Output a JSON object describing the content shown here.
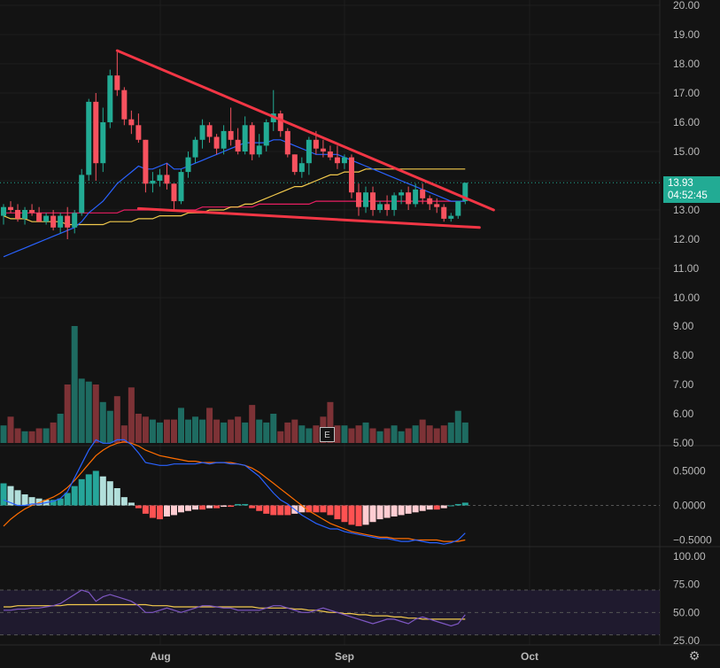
{
  "chart_data": {
    "type": "candlestick",
    "x_labels": [
      "Aug",
      "Sep",
      "Oct"
    ],
    "price": {
      "y_ticks": [
        "20.00",
        "19.00",
        "18.00",
        "17.00",
        "16.00",
        "15.00",
        "14.00",
        "13.00",
        "12.00",
        "11.00",
        "10.00"
      ],
      "ylim": [
        9.6,
        20.2
      ],
      "last_price": "13.93",
      "countdown": "04:52:45",
      "candles": [
        [
          12.8,
          13.2,
          12.5,
          13.1
        ],
        [
          13.1,
          13.3,
          12.9,
          13.0
        ],
        [
          13.0,
          13.2,
          12.6,
          12.7
        ],
        [
          12.7,
          13.1,
          12.5,
          13.0
        ],
        [
          13.0,
          13.2,
          12.8,
          12.9
        ],
        [
          12.9,
          13.1,
          12.6,
          12.6
        ],
        [
          12.6,
          12.9,
          12.5,
          12.8
        ],
        [
          12.8,
          13.0,
          12.3,
          12.4
        ],
        [
          12.4,
          12.9,
          12.2,
          12.8
        ],
        [
          12.8,
          13.1,
          12.0,
          12.4
        ],
        [
          12.4,
          13.0,
          12.2,
          12.9
        ],
        [
          12.9,
          14.4,
          12.8,
          14.2
        ],
        [
          14.2,
          16.8,
          14.0,
          16.7
        ],
        [
          16.7,
          17.0,
          14.0,
          14.6
        ],
        [
          14.6,
          16.5,
          14.3,
          16.0
        ],
        [
          16.0,
          17.8,
          15.8,
          17.6
        ],
        [
          17.6,
          18.4,
          16.9,
          17.1
        ],
        [
          17.1,
          17.2,
          15.9,
          16.1
        ],
        [
          16.1,
          16.4,
          15.6,
          15.9
        ],
        [
          15.9,
          16.3,
          15.3,
          15.4
        ],
        [
          15.4,
          15.4,
          13.6,
          13.9
        ],
        [
          13.9,
          14.3,
          13.6,
          14.0
        ],
        [
          14.0,
          14.4,
          13.8,
          14.2
        ],
        [
          14.2,
          14.6,
          13.7,
          13.9
        ],
        [
          13.9,
          13.9,
          13.0,
          13.3
        ],
        [
          13.3,
          14.4,
          13.2,
          14.3
        ],
        [
          14.3,
          15.0,
          14.1,
          14.8
        ],
        [
          14.8,
          15.5,
          14.6,
          15.4
        ],
        [
          15.4,
          16.1,
          15.1,
          15.9
        ],
        [
          15.9,
          16.0,
          15.3,
          15.5
        ],
        [
          15.5,
          15.6,
          14.9,
          15.1
        ],
        [
          15.1,
          15.9,
          14.9,
          15.7
        ],
        [
          15.7,
          16.5,
          15.2,
          15.4
        ],
        [
          15.4,
          15.8,
          14.9,
          15.0
        ],
        [
          15.0,
          16.2,
          14.9,
          15.9
        ],
        [
          15.9,
          16.0,
          14.7,
          14.9
        ],
        [
          14.9,
          15.6,
          14.8,
          15.2
        ],
        [
          15.2,
          16.1,
          15.0,
          16.0
        ],
        [
          16.0,
          17.1,
          15.7,
          16.3
        ],
        [
          16.3,
          16.4,
          15.5,
          15.7
        ],
        [
          15.7,
          15.8,
          14.8,
          14.9
        ],
        [
          14.9,
          14.9,
          14.2,
          14.3
        ],
        [
          14.3,
          14.8,
          14.1,
          14.6
        ],
        [
          14.6,
          15.5,
          14.2,
          15.4
        ],
        [
          15.4,
          15.7,
          14.9,
          15.1
        ],
        [
          15.1,
          15.4,
          14.8,
          15.0
        ],
        [
          15.0,
          15.2,
          14.7,
          14.8
        ],
        [
          14.8,
          15.2,
          14.4,
          14.6
        ],
        [
          14.6,
          14.9,
          14.4,
          14.8
        ],
        [
          14.8,
          14.9,
          13.4,
          13.6
        ],
        [
          13.6,
          13.9,
          12.8,
          13.1
        ],
        [
          13.1,
          13.8,
          12.9,
          13.6
        ],
        [
          13.6,
          13.8,
          12.8,
          13.0
        ],
        [
          13.0,
          13.3,
          12.9,
          13.2
        ],
        [
          13.2,
          13.5,
          12.8,
          13.0
        ],
        [
          13.0,
          13.6,
          12.8,
          13.5
        ],
        [
          13.5,
          13.7,
          13.2,
          13.6
        ],
        [
          13.6,
          13.8,
          13.0,
          13.2
        ],
        [
          13.2,
          13.9,
          13.1,
          13.7
        ],
        [
          13.7,
          13.9,
          13.2,
          13.4
        ],
        [
          13.4,
          13.5,
          13.0,
          13.2
        ],
        [
          13.2,
          13.4,
          12.9,
          13.1
        ],
        [
          13.1,
          13.2,
          12.6,
          12.7
        ],
        [
          12.7,
          12.9,
          12.6,
          12.8
        ],
        [
          12.8,
          13.3,
          12.7,
          13.3
        ],
        [
          13.3,
          13.93,
          13.2,
          13.93
        ]
      ],
      "ma_blue": [
        11.4,
        11.5,
        11.6,
        11.7,
        11.8,
        11.9,
        12.0,
        12.1,
        12.2,
        12.3,
        12.4,
        12.6,
        12.9,
        13.1,
        13.3,
        13.6,
        13.9,
        14.1,
        14.3,
        14.5,
        14.4,
        14.4,
        14.5,
        14.6,
        14.4,
        14.4,
        14.5,
        14.6,
        14.7,
        14.8,
        14.9,
        15.0,
        15.1,
        15.2,
        15.3,
        15.3,
        15.3,
        15.3,
        15.4,
        15.4,
        15.3,
        15.2,
        15.1,
        15.0,
        14.9,
        14.9,
        14.9,
        14.9,
        14.8,
        14.7,
        14.6,
        14.5,
        14.4,
        14.3,
        14.2,
        14.1,
        14.0,
        13.9,
        13.8,
        13.7,
        13.6,
        13.5,
        13.4,
        13.3,
        13.3,
        13.3
      ],
      "ma_yellow": [
        12.8,
        12.7,
        12.7,
        12.7,
        12.6,
        12.6,
        12.6,
        12.6,
        12.6,
        12.5,
        12.5,
        12.5,
        12.5,
        12.5,
        12.5,
        12.6,
        12.6,
        12.6,
        12.6,
        12.7,
        12.7,
        12.7,
        12.8,
        12.8,
        12.8,
        12.8,
        12.9,
        12.9,
        12.9,
        13.0,
        13.0,
        13.0,
        13.1,
        13.1,
        13.2,
        13.2,
        13.3,
        13.4,
        13.5,
        13.6,
        13.7,
        13.8,
        13.8,
        13.9,
        14.0,
        14.1,
        14.2,
        14.2,
        14.3,
        14.3,
        14.3,
        14.4,
        14.4,
        14.4,
        14.4,
        14.4,
        14.4,
        14.4,
        14.4,
        14.4,
        14.4,
        14.4,
        14.4,
        14.4,
        14.4,
        14.4
      ],
      "ma_pink": [
        12.9,
        12.9,
        12.9,
        12.9,
        12.9,
        12.9,
        12.9,
        12.9,
        12.9,
        12.9,
        12.9,
        12.9,
        12.9,
        12.9,
        12.9,
        12.9,
        12.9,
        13.0,
        13.0,
        13.0,
        13.0,
        13.0,
        13.0,
        13.0,
        13.0,
        13.0,
        13.0,
        13.0,
        13.1,
        13.1,
        13.1,
        13.1,
        13.1,
        13.1,
        13.1,
        13.1,
        13.2,
        13.2,
        13.2,
        13.2,
        13.2,
        13.2,
        13.2,
        13.2,
        13.3,
        13.3,
        13.3,
        13.3,
        13.3,
        13.3,
        13.3,
        13.3,
        13.3,
        13.3,
        13.3,
        13.3,
        13.3,
        13.3,
        13.3,
        13.3,
        13.3,
        13.3,
        13.3,
        13.3,
        13.3,
        13.3
      ],
      "trendlines": [
        {
          "from": [
            16,
            18.45
          ],
          "to": [
            69,
            13.0
          ]
        },
        {
          "from": [
            19,
            13.05
          ],
          "to": [
            67,
            12.4
          ]
        }
      ]
    },
    "volume": {
      "y_ticks": [
        "9.00",
        "8.00",
        "7.00",
        "6.00",
        "5.00"
      ],
      "ylim": [
        5.0,
        9.0
      ],
      "values": [
        5.6,
        5.9,
        5.5,
        5.4,
        5.4,
        5.5,
        5.5,
        5.7,
        6.0,
        7.0,
        9.0,
        7.2,
        7.1,
        7.0,
        6.4,
        6.1,
        6.6,
        5.6,
        6.9,
        6.0,
        5.9,
        5.8,
        5.7,
        5.8,
        5.8,
        6.2,
        5.8,
        5.9,
        5.8,
        6.2,
        5.8,
        5.7,
        5.8,
        5.9,
        5.7,
        6.3,
        5.8,
        5.7,
        6.0,
        5.4,
        5.7,
        5.8,
        5.6,
        5.5,
        5.6,
        5.9,
        6.4,
        5.6,
        5.6,
        5.5,
        5.6,
        5.7,
        5.5,
        5.4,
        5.5,
        5.6,
        5.4,
        5.5,
        5.6,
        5.8,
        5.6,
        5.5,
        5.6,
        5.7,
        6.1,
        5.7
      ],
      "earnings_marker": "E"
    },
    "macd": {
      "y_ticks": [
        "0.5000",
        "0.0000",
        "−0.5000"
      ],
      "ylim": [
        -0.62,
        0.95
      ],
      "histogram": [
        0.32,
        0.28,
        0.22,
        0.16,
        0.12,
        0.1,
        0.08,
        0.08,
        0.1,
        0.18,
        0.28,
        0.38,
        0.45,
        0.5,
        0.42,
        0.35,
        0.25,
        0.12,
        0.04,
        -0.04,
        -0.12,
        -0.18,
        -0.2,
        -0.16,
        -0.14,
        -0.1,
        -0.08,
        -0.06,
        -0.06,
        -0.04,
        -0.04,
        -0.02,
        -0.02,
        0.02,
        0.02,
        -0.04,
        -0.08,
        -0.12,
        -0.14,
        -0.14,
        -0.14,
        -0.12,
        -0.1,
        -0.1,
        -0.1,
        -0.1,
        -0.14,
        -0.2,
        -0.24,
        -0.28,
        -0.3,
        -0.28,
        -0.24,
        -0.2,
        -0.18,
        -0.16,
        -0.14,
        -0.12,
        -0.1,
        -0.08,
        -0.06,
        -0.06,
        -0.04,
        0.0,
        0.02,
        0.04
      ],
      "macd_line": [
        0.08,
        0.04,
        0.0,
        0.0,
        0.02,
        0.02,
        0.04,
        0.06,
        0.1,
        0.2,
        0.4,
        0.6,
        0.8,
        0.95,
        0.9,
        0.9,
        0.95,
        0.95,
        0.88,
        0.76,
        0.62,
        0.6,
        0.58,
        0.58,
        0.6,
        0.6,
        0.6,
        0.6,
        0.62,
        0.6,
        0.62,
        0.62,
        0.6,
        0.6,
        0.58,
        0.5,
        0.42,
        0.3,
        0.18,
        0.08,
        0.02,
        -0.06,
        -0.14,
        -0.2,
        -0.26,
        -0.3,
        -0.34,
        -0.34,
        -0.38,
        -0.4,
        -0.42,
        -0.44,
        -0.46,
        -0.48,
        -0.48,
        -0.5,
        -0.52,
        -0.52,
        -0.5,
        -0.52,
        -0.54,
        -0.54,
        -0.56,
        -0.54,
        -0.5,
        -0.4
      ],
      "signal_line": [
        -0.3,
        -0.2,
        -0.12,
        -0.05,
        0.0,
        0.04,
        0.08,
        0.12,
        0.18,
        0.26,
        0.36,
        0.48,
        0.6,
        0.72,
        0.8,
        0.86,
        0.9,
        0.92,
        0.9,
        0.86,
        0.8,
        0.76,
        0.72,
        0.7,
        0.68,
        0.66,
        0.64,
        0.64,
        0.62,
        0.62,
        0.62,
        0.62,
        0.62,
        0.6,
        0.58,
        0.54,
        0.48,
        0.4,
        0.32,
        0.24,
        0.16,
        0.08,
        0.0,
        -0.08,
        -0.14,
        -0.2,
        -0.26,
        -0.3,
        -0.34,
        -0.38,
        -0.4,
        -0.42,
        -0.44,
        -0.46,
        -0.46,
        -0.48,
        -0.48,
        -0.48,
        -0.5,
        -0.5,
        -0.5,
        -0.5,
        -0.52,
        -0.52,
        -0.52,
        -0.5
      ]
    },
    "rsi": {
      "y_ticks": [
        "100.00",
        "75.00",
        "50.00",
        "25.00"
      ],
      "ylim": [
        20,
        100
      ],
      "bands": [
        70,
        50,
        30
      ],
      "rsi_line": [
        52,
        52,
        53,
        53,
        54,
        54,
        55,
        56,
        58,
        62,
        66,
        70,
        68,
        60,
        64,
        66,
        64,
        62,
        60,
        56,
        50,
        50,
        52,
        54,
        52,
        50,
        52,
        54,
        56,
        56,
        55,
        54,
        54,
        52,
        52,
        52,
        52,
        54,
        56,
        56,
        54,
        52,
        50,
        50,
        52,
        54,
        52,
        50,
        48,
        46,
        44,
        42,
        40,
        42,
        44,
        44,
        42,
        40,
        44,
        46,
        44,
        42,
        40,
        38,
        40,
        48
      ],
      "rsi_ma": [
        55,
        55,
        56,
        56,
        56,
        56,
        56,
        56,
        56,
        57,
        57,
        57,
        57,
        57,
        57,
        57,
        57,
        57,
        57,
        57,
        57,
        56,
        56,
        56,
        55,
        55,
        55,
        55,
        55,
        55,
        55,
        55,
        55,
        55,
        55,
        55,
        54,
        54,
        54,
        54,
        54,
        53,
        53,
        52,
        52,
        51,
        50,
        50,
        49,
        49,
        48,
        48,
        47,
        47,
        47,
        46,
        46,
        45,
        45,
        44,
        44,
        44,
        44,
        44,
        44,
        44
      ]
    }
  },
  "colors": {
    "background": "#131313",
    "up": "#22ab94",
    "down": "#f7525f",
    "up_volume": "#1e6b61",
    "down_volume": "#7d3236",
    "ma_blue": "#2962ff",
    "ma_yellow": "#f2c94c",
    "ma_pink": "#e91e63",
    "trendline": "#f23645",
    "macd_line": "#2962ff",
    "signal_line": "#ff6d00",
    "hist_pos": "#b2dfdb",
    "hist_neg": "#ffcdd2",
    "hist_pos_dark": "#26a69a",
    "hist_neg_dark": "#ff5252",
    "rsi_line": "#7e57c2",
    "rsi_ma": "#f2c94c",
    "rsi_band": "#1f1a2e"
  },
  "icons": {
    "settings": "gear-icon"
  },
  "settings_glyph": "⚙"
}
